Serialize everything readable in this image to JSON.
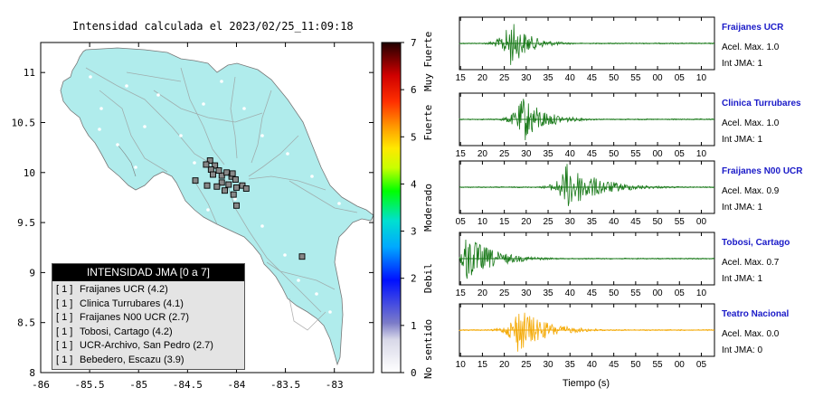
{
  "title": "Intensidad calculada el 2023/02/25_11:09:18",
  "map": {
    "x_ticks": [
      "-86",
      "-85.5",
      "-85",
      "-84.5",
      "-84",
      "-83.5",
      "-83"
    ],
    "y_ticks": [
      "11",
      "10.5",
      "10",
      "9.5",
      "9",
      "8.5",
      "8"
    ],
    "land_color": "#b0ecec",
    "station_marker_color": "#888888"
  },
  "colorbar": {
    "ticks": [
      "0",
      "1",
      "2",
      "3",
      "4",
      "5",
      "6",
      "7"
    ],
    "labels": [
      "No sentido",
      "Debil",
      "Moderado",
      "Fuerte",
      "Muy Fuerte"
    ]
  },
  "legend": {
    "header": "INTENSIDAD JMA [0 a 7]",
    "items": [
      {
        "level": "[ 1 ]",
        "label": "Fraijanes UCR (4.2)"
      },
      {
        "level": "[ 1 ]",
        "label": "Clinica Turrubares (4.1)"
      },
      {
        "level": "[ 1 ]",
        "label": "Fraijanes N00 UCR (2.7)"
      },
      {
        "level": "[ 1 ]",
        "label": "Tobosi, Cartago (4.2)"
      },
      {
        "level": "[ 1 ]",
        "label": "UCR-Archivo, San Pedro (2.7)"
      },
      {
        "level": "[ 1 ]",
        "label": "Bebedero, Escazu (3.9)"
      }
    ]
  },
  "chart_data": [
    {
      "type": "scatter",
      "title": "Intensidad calculada el 2023/02/25_11:09:18",
      "xlim": [
        -86,
        -82.6
      ],
      "ylim": [
        8,
        11.3
      ],
      "x_ticks": [
        -86,
        -85.5,
        -85,
        -84.5,
        -84,
        -83.5,
        -83
      ],
      "y_ticks": [
        8,
        8.5,
        9,
        9.5,
        10,
        10.5,
        11
      ],
      "station_points": [
        {
          "x": -84.27,
          "y": 10.12
        },
        {
          "x": -84.22,
          "y": 10.07
        },
        {
          "x": -84.26,
          "y": 10.03
        },
        {
          "x": -84.31,
          "y": 10.08
        },
        {
          "x": -84.15,
          "y": 9.97
        },
        {
          "x": -84.24,
          "y": 9.98
        },
        {
          "x": -84.18,
          "y": 10.02
        },
        {
          "x": -84.1,
          "y": 10.0
        },
        {
          "x": -84.05,
          "y": 9.96
        },
        {
          "x": -84.01,
          "y": 9.93
        },
        {
          "x": -84.04,
          "y": 9.99
        },
        {
          "x": -84.15,
          "y": 9.9
        },
        {
          "x": -84.08,
          "y": 9.88
        },
        {
          "x": -84.2,
          "y": 9.86
        },
        {
          "x": -84.0,
          "y": 9.85
        },
        {
          "x": -84.42,
          "y": 9.92
        },
        {
          "x": -84.3,
          "y": 9.87
        },
        {
          "x": -83.94,
          "y": 9.87
        },
        {
          "x": -83.9,
          "y": 9.84
        },
        {
          "x": -84.12,
          "y": 9.82
        },
        {
          "x": -84.03,
          "y": 9.78
        },
        {
          "x": -84.0,
          "y": 9.67
        },
        {
          "x": -83.33,
          "y": 9.16
        }
      ],
      "colorbar": {
        "min": 0,
        "max": 7,
        "label_words": [
          "No sentido",
          "Debil",
          "Moderado",
          "Fuerte",
          "Muy Fuerte"
        ]
      }
    },
    {
      "type": "line",
      "xlabel": "Tiempo (s)",
      "series": [
        {
          "name": "Fraijanes UCR",
          "accel_label": "Acel. Max. 1.0",
          "jma_label": "Int JMA: 1",
          "color": "#1a7a1a",
          "x_ticks": [
            "15",
            "20",
            "25",
            "30",
            "35",
            "40",
            "45",
            "50",
            "55",
            "00",
            "05",
            "10"
          ],
          "peak_fraction": 0.2,
          "decay": 0.07
        },
        {
          "name": "Clinica Turrubares",
          "accel_label": "Acel. Max. 1.0",
          "jma_label": "Int JMA: 1",
          "color": "#1a7a1a",
          "x_ticks": [
            "15",
            "20",
            "25",
            "30",
            "35",
            "40",
            "45",
            "50",
            "55",
            "00",
            "05",
            "10"
          ],
          "peak_fraction": 0.25,
          "decay": 0.08
        },
        {
          "name": "Fraijanes N00 UCR",
          "accel_label": "Acel. Max. 0.9",
          "jma_label": "Int JMA: 1",
          "color": "#1a7a1a",
          "x_ticks": [
            "05",
            "10",
            "15",
            "20",
            "25",
            "30",
            "35",
            "40",
            "45",
            "50",
            "55",
            "00"
          ],
          "peak_fraction": 0.42,
          "decay": 0.12
        },
        {
          "name": "Tobosi, Cartago",
          "accel_label": "Acel. Max. 0.7",
          "jma_label": "Int JMA: 1",
          "color": "#1a7a1a",
          "x_ticks": [
            "15",
            "20",
            "25",
            "30",
            "35",
            "40",
            "45",
            "50",
            "55",
            "00",
            "05",
            "10"
          ],
          "peak_fraction": 0.03,
          "decay": 0.1
        },
        {
          "name": "Teatro Nacional",
          "accel_label": "Acel. Max. 0.0",
          "jma_label": "Int JMA: 0",
          "color": "#f4a800",
          "x_ticks": [
            "10",
            "15",
            "20",
            "25",
            "30",
            "35",
            "40",
            "45",
            "50",
            "55",
            "00",
            "05"
          ],
          "peak_fraction": 0.23,
          "decay": 0.1
        }
      ]
    }
  ]
}
